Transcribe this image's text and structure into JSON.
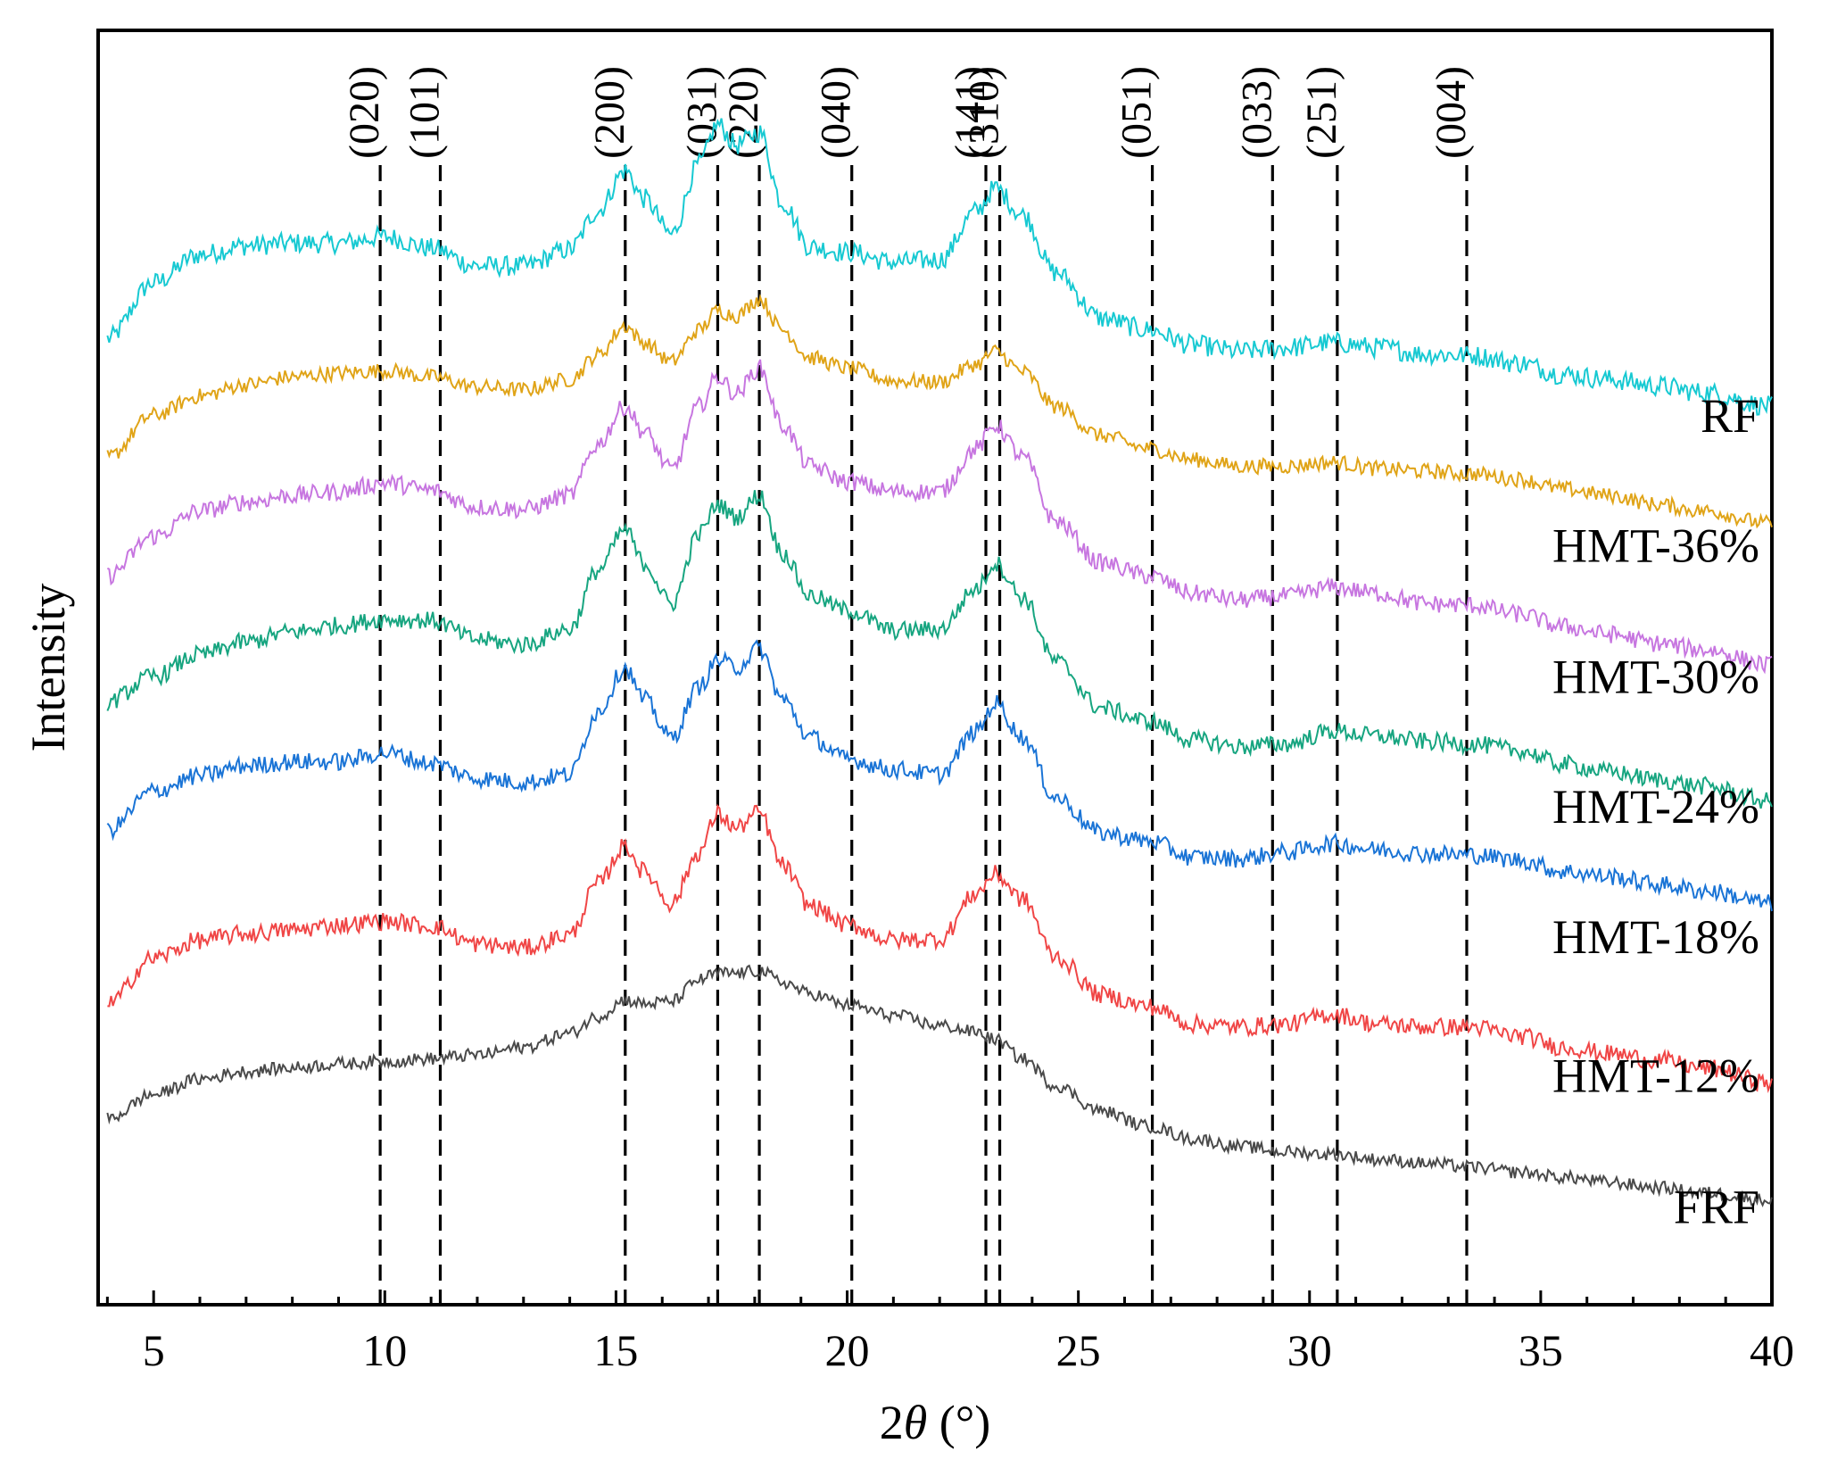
{
  "chart_data": {
    "type": "line",
    "title": "",
    "xlabel_prefix": "2",
    "xlabel_symbol": "θ",
    "xlabel_suffix": " (°)",
    "ylabel": "Intensity",
    "xlim": [
      3.8,
      40
    ],
    "ylim": [
      0,
      100
    ],
    "x_ticks": [
      5,
      10,
      15,
      20,
      25,
      30,
      35,
      40
    ],
    "x_tick_labels": [
      "5",
      "10",
      "15",
      "20",
      "25",
      "30",
      "35",
      "40"
    ],
    "y_ticks_shown": false,
    "reference_lines": [
      {
        "x": 9.9,
        "label": "(020)"
      },
      {
        "x": 11.2,
        "label": "(101)"
      },
      {
        "x": 15.2,
        "label": "(200)"
      },
      {
        "x": 17.2,
        "label": "(031)"
      },
      {
        "x": 18.1,
        "label": "(220)"
      },
      {
        "x": 20.1,
        "label": "(040)"
      },
      {
        "x": 23.0,
        "label": "(141)"
      },
      {
        "x": 23.3,
        "label": "(310)"
      },
      {
        "x": 26.6,
        "label": "(051)"
      },
      {
        "x": 29.2,
        "label": "(033)"
      },
      {
        "x": 30.6,
        "label": "(251)"
      },
      {
        "x": 33.4,
        "label": "(004)"
      }
    ],
    "series": [
      {
        "name": "RF",
        "color": "#17c9d2",
        "label_y": 68.5,
        "noise": 0.8,
        "x": [
          4.0,
          5.0,
          6.0,
          7.0,
          8.0,
          9.0,
          10.0,
          11.0,
          12.0,
          13.0,
          14.0,
          14.6,
          15.2,
          15.6,
          16.2,
          16.8,
          17.2,
          17.6,
          18.1,
          18.6,
          19.2,
          20.0,
          21.0,
          22.0,
          22.8,
          23.2,
          23.8,
          24.5,
          25.5,
          26.5,
          27.5,
          28.5,
          29.5,
          30.5,
          31.5,
          32.5,
          33.5,
          34.5,
          35.5,
          36.5,
          37.5,
          38.5,
          40.0
        ],
        "y": [
          75.8,
          80.2,
          82.4,
          83.1,
          83.3,
          83.3,
          83.8,
          82.9,
          81.5,
          81.5,
          82.8,
          85.8,
          89.0,
          86.8,
          84.0,
          89.5,
          92.6,
          91.0,
          92.0,
          86.5,
          83.0,
          82.6,
          81.8,
          82.0,
          85.8,
          87.6,
          85.5,
          81.0,
          77.4,
          76.5,
          75.3,
          74.8,
          75.1,
          75.5,
          75.1,
          74.6,
          74.5,
          73.9,
          73.0,
          72.6,
          72.1,
          71.6,
          70.5
        ]
      },
      {
        "name": "HMT-36%",
        "color": "#e0a418",
        "label_y": 58.3,
        "noise": 0.6,
        "x": [
          4.0,
          5.0,
          6.0,
          7.0,
          8.0,
          9.0,
          10.0,
          11.0,
          12.0,
          13.0,
          14.0,
          14.6,
          15.2,
          15.6,
          16.2,
          16.8,
          17.2,
          17.6,
          18.1,
          18.6,
          19.2,
          20.0,
          21.0,
          22.0,
          22.8,
          23.2,
          23.8,
          24.5,
          25.5,
          26.5,
          27.5,
          28.5,
          29.5,
          30.5,
          31.5,
          32.5,
          33.5,
          34.5,
          35.5,
          36.5,
          37.5,
          38.5,
          40.0
        ],
        "y": [
          66.5,
          69.8,
          71.3,
          72.2,
          72.8,
          73.1,
          73.3,
          72.8,
          72.0,
          71.8,
          72.6,
          74.5,
          76.8,
          75.5,
          74.0,
          76.5,
          78.0,
          77.6,
          78.9,
          76.5,
          74.3,
          73.5,
          72.5,
          72.4,
          73.8,
          74.8,
          73.2,
          70.5,
          68.2,
          67.2,
          66.3,
          65.8,
          65.8,
          66.1,
          65.6,
          65.4,
          65.2,
          64.8,
          64.0,
          63.5,
          62.8,
          62.3,
          61.3
        ]
      },
      {
        "name": "HMT-30%",
        "color": "#c776e0",
        "label_y": 48.0,
        "noise": 0.7,
        "x": [
          4.0,
          5.0,
          6.0,
          7.0,
          8.0,
          9.0,
          10.0,
          11.0,
          12.0,
          13.0,
          14.0,
          14.6,
          15.2,
          15.6,
          16.2,
          16.8,
          17.2,
          17.6,
          18.1,
          18.6,
          19.2,
          20.0,
          21.0,
          22.0,
          22.8,
          23.2,
          23.8,
          24.5,
          25.5,
          26.5,
          27.5,
          28.5,
          29.5,
          30.5,
          31.5,
          32.5,
          33.5,
          34.5,
          35.5,
          36.5,
          37.5,
          38.5,
          40.0
        ],
        "y": [
          57.2,
          60.3,
          62.3,
          63.0,
          63.5,
          63.8,
          64.5,
          63.9,
          62.6,
          62.4,
          63.5,
          67.5,
          70.5,
          68.5,
          65.5,
          70.5,
          72.8,
          71.5,
          73.5,
          69.0,
          65.8,
          64.6,
          63.8,
          63.8,
          67.2,
          69.0,
          66.5,
          61.5,
          58.2,
          57.2,
          55.8,
          55.3,
          55.6,
          56.3,
          55.8,
          55.0,
          54.9,
          54.2,
          53.2,
          52.6,
          51.9,
          51.4,
          50.2
        ]
      },
      {
        "name": "HMT-24%",
        "color": "#17a580",
        "label_y": 37.8,
        "noise": 0.7,
        "x": [
          4.0,
          5.0,
          6.0,
          7.0,
          8.0,
          9.0,
          10.0,
          11.0,
          12.0,
          13.0,
          14.0,
          14.6,
          15.2,
          15.6,
          16.2,
          16.8,
          17.2,
          17.6,
          18.1,
          18.6,
          19.2,
          20.0,
          21.0,
          22.0,
          22.8,
          23.2,
          23.8,
          24.5,
          25.5,
          26.5,
          27.5,
          28.5,
          29.5,
          30.5,
          31.5,
          32.5,
          33.5,
          34.5,
          35.5,
          36.5,
          37.5,
          38.5,
          40.0
        ],
        "y": [
          47.3,
          49.3,
          51.0,
          52.0,
          52.8,
          53.3,
          53.8,
          53.7,
          52.2,
          51.8,
          53.0,
          57.6,
          60.8,
          58.2,
          55.0,
          60.5,
          62.8,
          61.8,
          63.5,
          59.0,
          55.6,
          54.5,
          52.9,
          53.0,
          56.2,
          58.2,
          55.5,
          50.5,
          46.8,
          45.8,
          44.3,
          43.8,
          44.0,
          45.0,
          44.6,
          44.2,
          44.0,
          43.5,
          42.4,
          41.8,
          41.2,
          40.7,
          39.5
        ]
      },
      {
        "name": "HMT-18%",
        "color": "#1a74d6",
        "label_y": 27.6,
        "noise": 0.7,
        "x": [
          4.0,
          5.0,
          6.0,
          7.0,
          8.0,
          9.0,
          10.0,
          11.0,
          12.0,
          13.0,
          14.0,
          14.6,
          15.2,
          15.6,
          16.2,
          16.8,
          17.2,
          17.6,
          18.1,
          18.6,
          19.2,
          20.0,
          21.0,
          22.0,
          22.8,
          23.2,
          23.8,
          24.5,
          25.5,
          26.5,
          27.5,
          28.5,
          29.5,
          30.5,
          31.5,
          32.5,
          33.5,
          34.5,
          35.5,
          36.5,
          37.5,
          38.5,
          40.0
        ],
        "y": [
          37.2,
          40.3,
          41.5,
          42.3,
          42.6,
          42.6,
          43.3,
          42.5,
          41.3,
          41.0,
          41.6,
          46.5,
          50.0,
          47.5,
          44.5,
          48.5,
          50.6,
          50.0,
          51.5,
          47.5,
          44.5,
          42.8,
          42.0,
          41.6,
          45.0,
          47.2,
          44.5,
          39.8,
          37.0,
          36.4,
          35.1,
          35.0,
          35.5,
          36.2,
          35.7,
          35.4,
          35.3,
          34.9,
          34.0,
          33.6,
          33.0,
          32.5,
          31.5
        ]
      },
      {
        "name": "HMT-12%",
        "color": "#f04646",
        "label_y": 16.7,
        "noise": 0.7,
        "x": [
          4.0,
          5.0,
          6.0,
          7.0,
          8.0,
          9.0,
          10.0,
          11.0,
          12.0,
          13.0,
          14.0,
          14.6,
          15.2,
          15.6,
          16.2,
          16.8,
          17.2,
          17.6,
          18.1,
          18.6,
          19.2,
          20.0,
          21.0,
          22.0,
          22.8,
          23.2,
          23.8,
          24.5,
          25.5,
          26.5,
          27.5,
          28.5,
          29.5,
          30.5,
          31.5,
          32.5,
          33.5,
          34.5,
          35.5,
          36.5,
          37.5,
          38.5,
          40.0
        ],
        "y": [
          23.6,
          27.2,
          28.6,
          29.1,
          29.4,
          29.8,
          30.1,
          29.7,
          28.3,
          28.0,
          29.0,
          33.0,
          36.0,
          34.0,
          31.5,
          35.5,
          38.5,
          37.4,
          38.6,
          34.5,
          31.3,
          29.8,
          28.6,
          28.7,
          32.3,
          33.8,
          31.8,
          27.3,
          24.3,
          23.4,
          22.0,
          21.8,
          22.0,
          22.8,
          22.0,
          21.8,
          21.8,
          21.1,
          20.2,
          19.7,
          19.2,
          18.6,
          17.4
        ]
      },
      {
        "name": "FRF",
        "color": "#4a4a4a",
        "label_y": 6.4,
        "noise": 0.5,
        "x": [
          4.0,
          5.0,
          6.0,
          7.0,
          8.0,
          9.0,
          10.0,
          11.0,
          12.0,
          13.0,
          14.0,
          14.6,
          15.2,
          15.6,
          16.2,
          16.8,
          17.2,
          17.6,
          18.1,
          18.6,
          19.2,
          20.0,
          21.0,
          22.0,
          22.8,
          23.2,
          23.8,
          24.5,
          25.5,
          26.5,
          27.5,
          28.5,
          29.5,
          30.5,
          31.5,
          32.5,
          33.5,
          34.5,
          35.5,
          36.5,
          37.5,
          38.5,
          40.0
        ],
        "y": [
          14.6,
          16.5,
          17.7,
          18.3,
          18.6,
          18.9,
          19.1,
          19.3,
          19.6,
          20.2,
          21.3,
          22.6,
          23.9,
          23.6,
          23.8,
          25.5,
          26.0,
          26.0,
          26.2,
          25.3,
          24.4,
          23.5,
          22.7,
          21.9,
          21.4,
          20.8,
          19.3,
          17.2,
          15.2,
          14.0,
          13.0,
          12.4,
          12.0,
          11.8,
          11.4,
          11.1,
          10.8,
          10.4,
          10.0,
          9.6,
          9.2,
          8.8,
          8.2
        ]
      }
    ]
  }
}
